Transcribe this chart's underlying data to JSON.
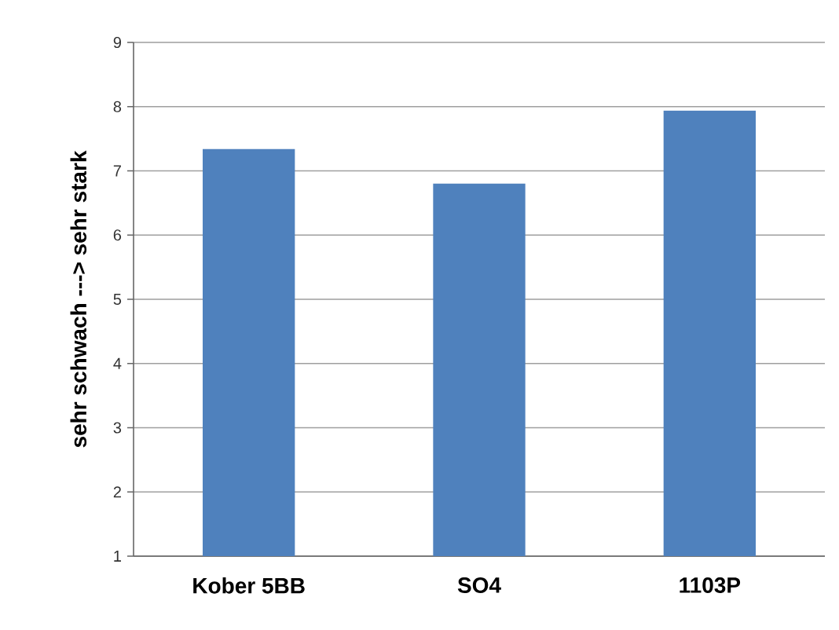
{
  "chart_data": {
    "type": "bar",
    "categories": [
      "Kober 5BB",
      "SO4",
      "1103P"
    ],
    "values": [
      7.34,
      6.8,
      7.94
    ],
    "color": "#4f81bd",
    "ylabel": "sehr schwach  --->  sehr stark",
    "ylim": [
      1,
      9
    ],
    "yticks": [
      1,
      2,
      3,
      4,
      5,
      6,
      7,
      8,
      9
    ],
    "grid": "y"
  }
}
